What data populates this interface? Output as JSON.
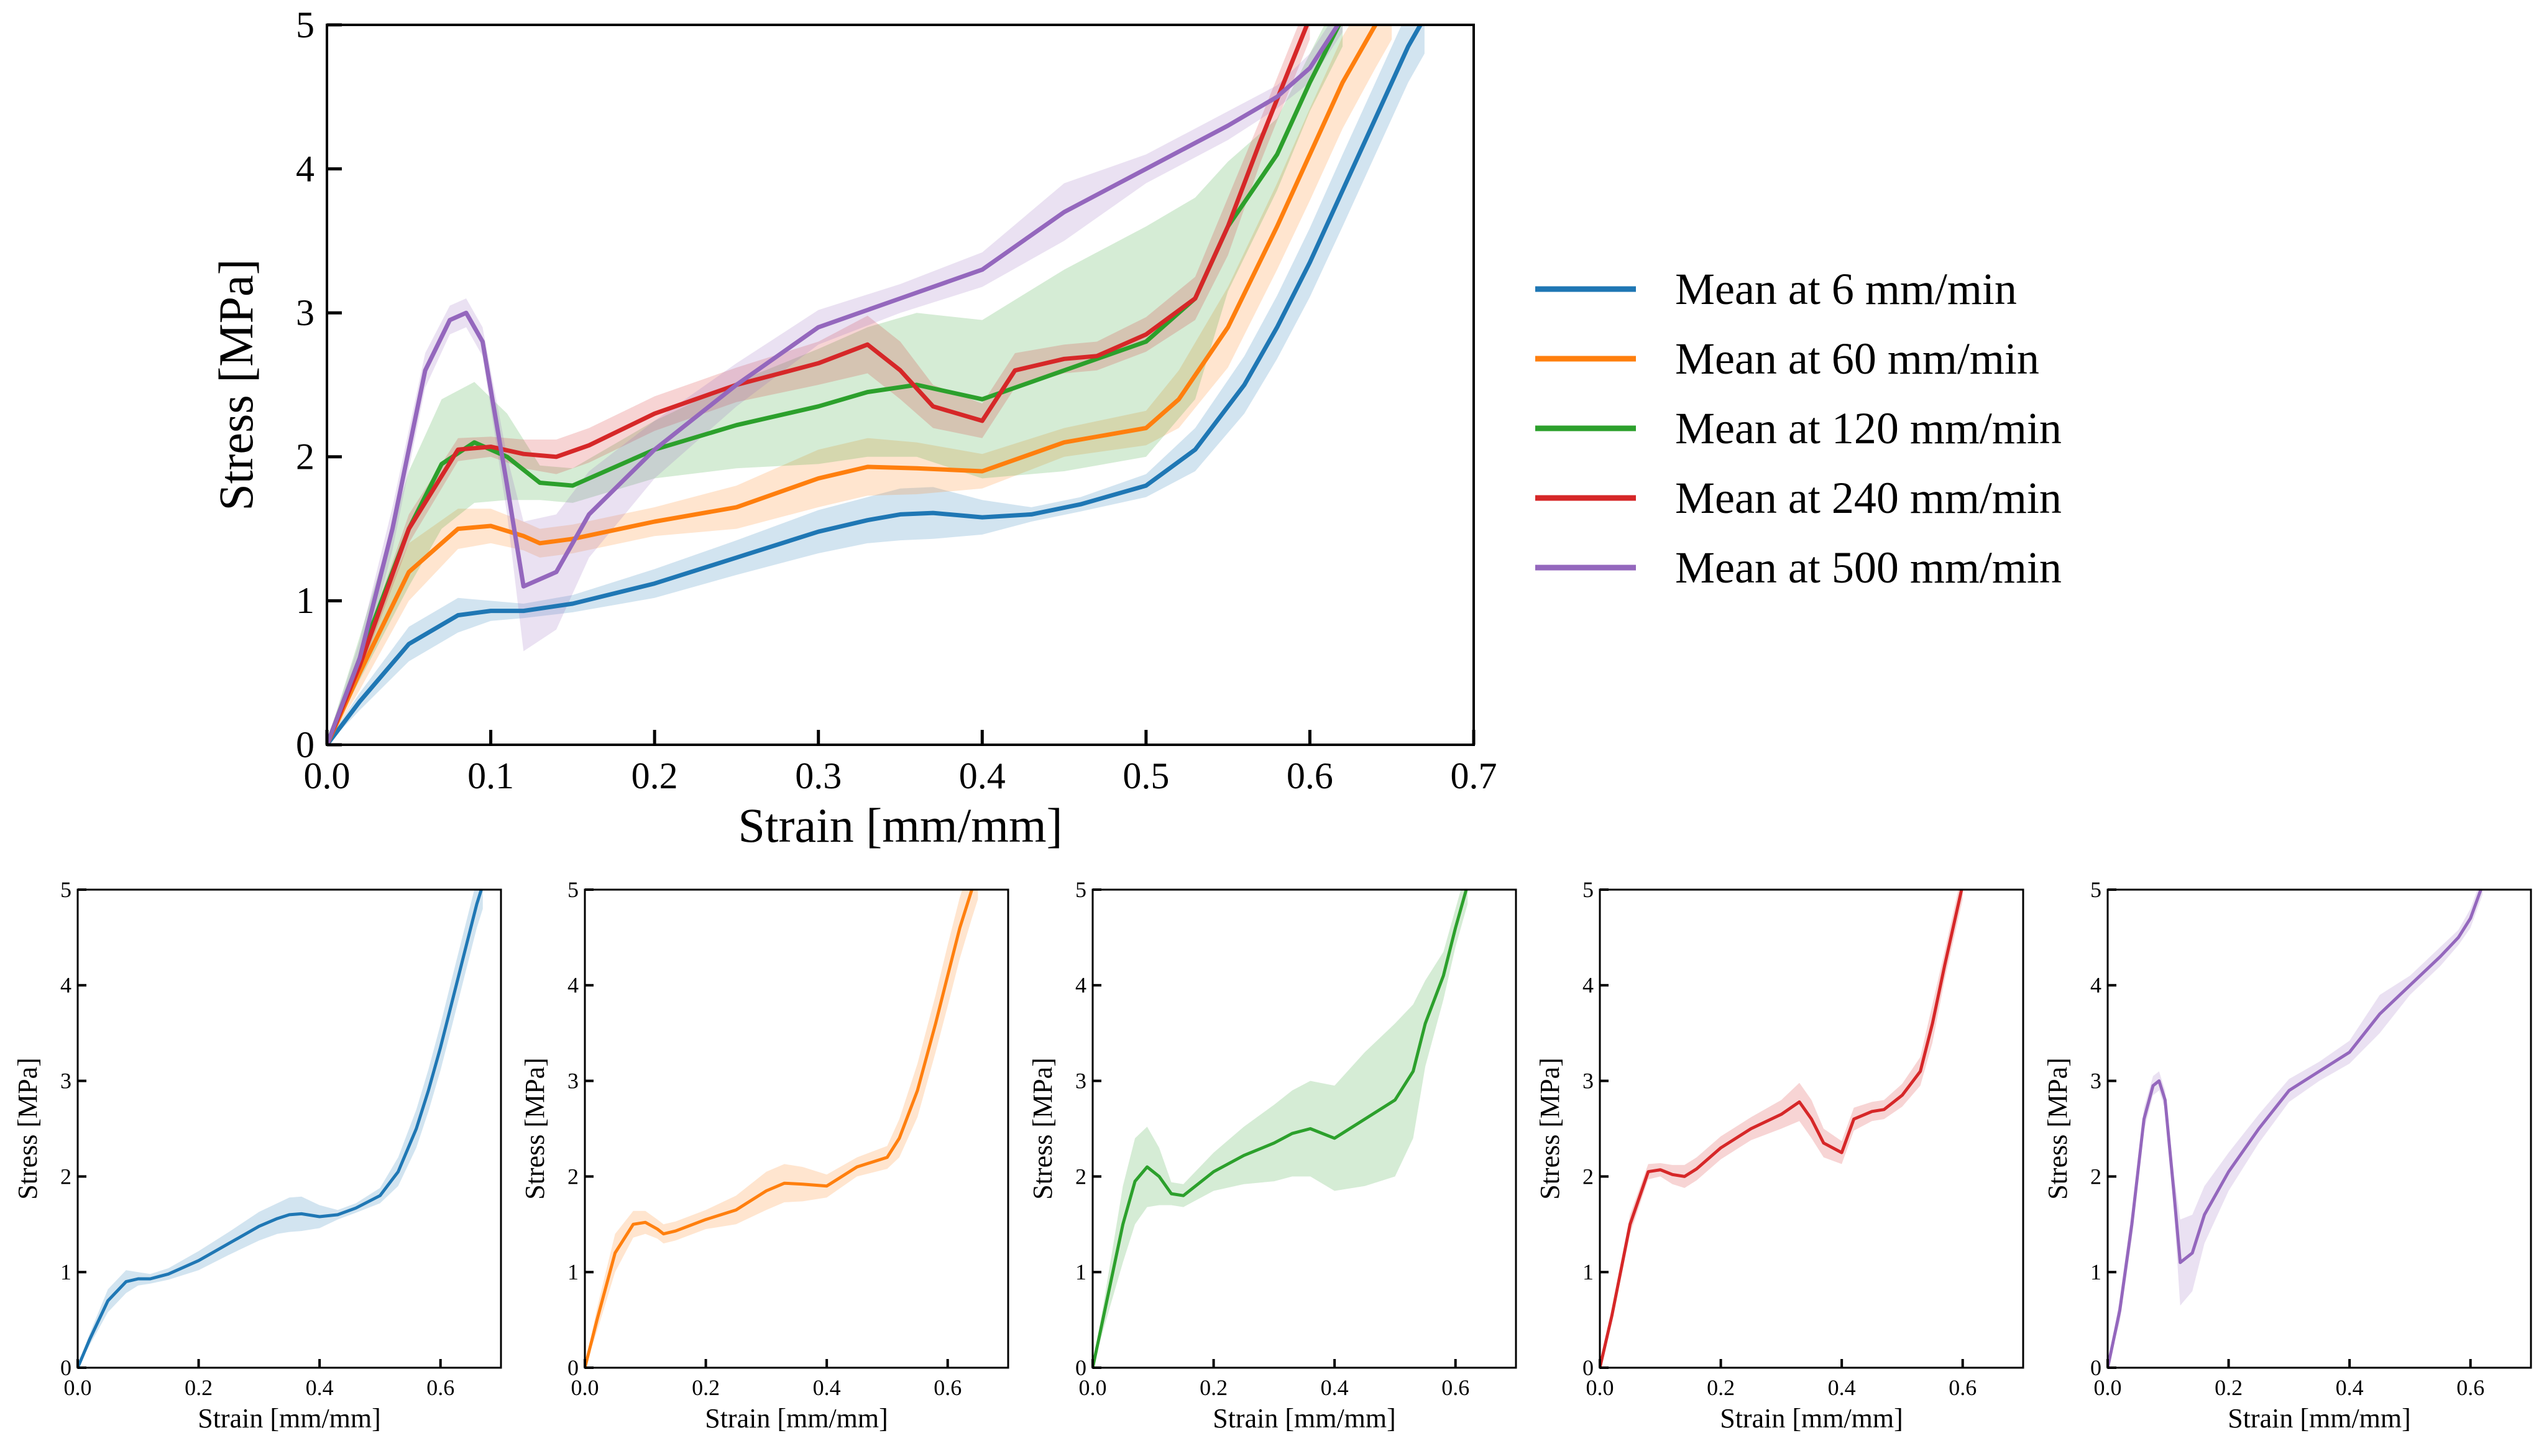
{
  "chart_data": [
    {
      "type": "line",
      "panel": "main",
      "title": "",
      "xlabel": "Strain [mm/mm]",
      "ylabel": "Stress [MPa]",
      "xlim": [
        0,
        0.7
      ],
      "ylim": [
        0,
        5
      ],
      "xticks": [
        "0.0",
        "0.1",
        "0.2",
        "0.3",
        "0.4",
        "0.5",
        "0.6",
        "0.7"
      ],
      "yticks": [
        "0",
        "1",
        "2",
        "3",
        "4",
        "5"
      ],
      "legend_position": "right",
      "shaded_band": "variability range around each mean curve",
      "series": [
        {
          "name": "Mean at 6 mm/min",
          "color": "#1f77b4",
          "x": [
            0,
            0.02,
            0.05,
            0.08,
            0.1,
            0.12,
            0.15,
            0.2,
            0.25,
            0.3,
            0.33,
            0.35,
            0.37,
            0.4,
            0.43,
            0.46,
            0.5,
            0.53,
            0.56,
            0.58,
            0.6,
            0.62,
            0.64,
            0.66,
            0.67
          ],
          "mean": [
            0,
            0.3,
            0.7,
            0.9,
            0.93,
            0.93,
            0.98,
            1.12,
            1.3,
            1.48,
            1.56,
            1.6,
            1.61,
            1.58,
            1.6,
            1.67,
            1.8,
            2.05,
            2.5,
            2.9,
            3.35,
            3.85,
            4.35,
            4.85,
            5.05
          ],
          "band": [
            0.02,
            0.06,
            0.12,
            0.12,
            0.07,
            0.05,
            0.06,
            0.1,
            0.12,
            0.15,
            0.16,
            0.18,
            0.18,
            0.12,
            0.05,
            0.05,
            0.08,
            0.15,
            0.2,
            0.22,
            0.24,
            0.25,
            0.25,
            0.25,
            0.25
          ]
        },
        {
          "name": "Mean at 60 mm/min",
          "color": "#ff7f0e",
          "x": [
            0,
            0.02,
            0.05,
            0.08,
            0.1,
            0.12,
            0.13,
            0.15,
            0.2,
            0.25,
            0.3,
            0.33,
            0.36,
            0.4,
            0.45,
            0.5,
            0.52,
            0.55,
            0.58,
            0.6,
            0.62,
            0.64,
            0.65
          ],
          "mean": [
            0,
            0.5,
            1.2,
            1.5,
            1.52,
            1.45,
            1.4,
            1.43,
            1.55,
            1.65,
            1.85,
            1.93,
            1.92,
            1.9,
            2.1,
            2.2,
            2.4,
            2.9,
            3.6,
            4.1,
            4.6,
            5.0,
            5.2
          ],
          "band": [
            0.02,
            0.12,
            0.2,
            0.14,
            0.12,
            0.1,
            0.1,
            0.1,
            0.1,
            0.15,
            0.2,
            0.2,
            0.18,
            0.12,
            0.1,
            0.12,
            0.2,
            0.28,
            0.3,
            0.32,
            0.32,
            0.3,
            0.3
          ]
        },
        {
          "name": "Mean at 120 mm/min",
          "color": "#2ca02c",
          "x": [
            0,
            0.02,
            0.05,
            0.07,
            0.09,
            0.11,
            0.13,
            0.15,
            0.2,
            0.25,
            0.3,
            0.33,
            0.36,
            0.4,
            0.45,
            0.5,
            0.53,
            0.55,
            0.58,
            0.6,
            0.62
          ],
          "mean": [
            0,
            0.6,
            1.5,
            1.95,
            2.1,
            2.0,
            1.82,
            1.8,
            2.05,
            2.22,
            2.35,
            2.45,
            2.5,
            2.4,
            2.6,
            2.8,
            3.1,
            3.6,
            4.1,
            4.6,
            5.05
          ],
          "band": [
            0.02,
            0.15,
            0.4,
            0.45,
            0.42,
            0.3,
            0.12,
            0.12,
            0.2,
            0.3,
            0.4,
            0.45,
            0.5,
            0.55,
            0.7,
            0.8,
            0.7,
            0.45,
            0.25,
            0.2,
            0.2
          ]
        },
        {
          "name": "Mean at 240 mm/min",
          "color": "#d62728",
          "x": [
            0,
            0.02,
            0.05,
            0.08,
            0.1,
            0.12,
            0.14,
            0.16,
            0.2,
            0.25,
            0.3,
            0.33,
            0.35,
            0.37,
            0.4,
            0.42,
            0.45,
            0.47,
            0.5,
            0.53,
            0.55,
            0.57,
            0.6
          ],
          "mean": [
            0,
            0.55,
            1.5,
            2.05,
            2.07,
            2.02,
            2.0,
            2.08,
            2.3,
            2.5,
            2.65,
            2.78,
            2.6,
            2.35,
            2.25,
            2.6,
            2.68,
            2.7,
            2.85,
            3.1,
            3.6,
            4.2,
            5.05
          ],
          "band": [
            0.02,
            0.06,
            0.1,
            0.08,
            0.07,
            0.1,
            0.12,
            0.12,
            0.12,
            0.12,
            0.15,
            0.2,
            0.2,
            0.15,
            0.12,
            0.12,
            0.1,
            0.1,
            0.12,
            0.15,
            0.2,
            0.15,
            0.15
          ]
        },
        {
          "name": "Mean at 500 mm/min",
          "color": "#9467bd",
          "x": [
            0,
            0.02,
            0.04,
            0.06,
            0.075,
            0.085,
            0.095,
            0.11,
            0.12,
            0.14,
            0.16,
            0.2,
            0.25,
            0.3,
            0.35,
            0.4,
            0.45,
            0.5,
            0.55,
            0.58,
            0.6,
            0.62
          ],
          "mean": [
            0,
            0.6,
            1.5,
            2.6,
            2.95,
            3.0,
            2.8,
            1.8,
            1.1,
            1.2,
            1.6,
            2.05,
            2.5,
            2.9,
            3.1,
            3.3,
            3.7,
            4.0,
            4.3,
            4.5,
            4.7,
            5.05
          ],
          "band": [
            0.02,
            0.12,
            0.15,
            0.12,
            0.1,
            0.1,
            0.1,
            0.2,
            0.45,
            0.4,
            0.3,
            0.2,
            0.15,
            0.12,
            0.1,
            0.12,
            0.2,
            0.1,
            0.1,
            0.08,
            0.1,
            0.1
          ]
        }
      ]
    },
    {
      "type": "line",
      "panel": "small-1",
      "xlabel": "Strain [mm/mm]",
      "ylabel": "Stress [MPa]",
      "xlim": [
        0,
        0.7
      ],
      "ylim": [
        0,
        5
      ],
      "xticks": [
        "0.0",
        "0.2",
        "0.4",
        "0.6"
      ],
      "yticks": [
        "0",
        "1",
        "2",
        "3",
        "4",
        "5"
      ],
      "series_ref": "Mean at 6 mm/min"
    },
    {
      "type": "line",
      "panel": "small-2",
      "xlabel": "Strain [mm/mm]",
      "ylabel": "Stress [MPa]",
      "xlim": [
        0,
        0.7
      ],
      "ylim": [
        0,
        5
      ],
      "xticks": [
        "0.0",
        "0.2",
        "0.4",
        "0.6"
      ],
      "yticks": [
        "0",
        "1",
        "2",
        "3",
        "4",
        "5"
      ],
      "series_ref": "Mean at 60 mm/min"
    },
    {
      "type": "line",
      "panel": "small-3",
      "xlabel": "Strain [mm/mm]",
      "ylabel": "Stress [MPa]",
      "xlim": [
        0,
        0.7
      ],
      "ylim": [
        0,
        5
      ],
      "xticks": [
        "0.0",
        "0.2",
        "0.4",
        "0.6"
      ],
      "yticks": [
        "0",
        "1",
        "2",
        "3",
        "4",
        "5"
      ],
      "series_ref": "Mean at 120 mm/min"
    },
    {
      "type": "line",
      "panel": "small-4",
      "xlabel": "Strain [mm/mm]",
      "ylabel": "Stress [MPa]",
      "xlim": [
        0,
        0.7
      ],
      "ylim": [
        0,
        5
      ],
      "xticks": [
        "0.0",
        "0.2",
        "0.4",
        "0.6"
      ],
      "yticks": [
        "0",
        "1",
        "2",
        "3",
        "4",
        "5"
      ],
      "series_ref": "Mean at 240 mm/min"
    },
    {
      "type": "line",
      "panel": "small-5",
      "xlabel": "Strain [mm/mm]",
      "ylabel": "Stress [MPa]",
      "xlim": [
        0,
        0.7
      ],
      "ylim": [
        0,
        5
      ],
      "xticks": [
        "0.0",
        "0.2",
        "0.4",
        "0.6"
      ],
      "yticks": [
        "0",
        "1",
        "2",
        "3",
        "4",
        "5"
      ],
      "series_ref": "Mean at 500 mm/min"
    }
  ]
}
